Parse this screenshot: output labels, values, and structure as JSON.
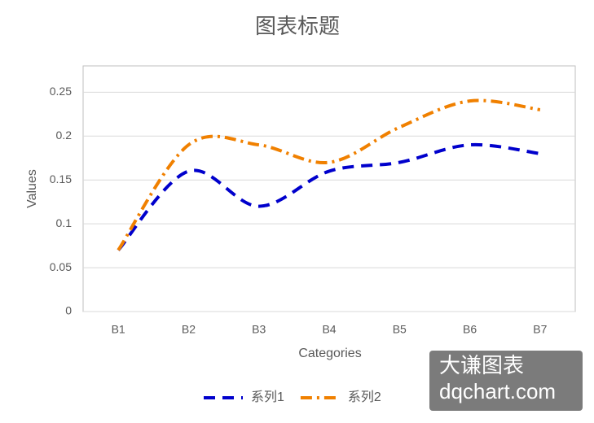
{
  "chart_data": {
    "type": "line",
    "title": "图表标题",
    "x_label": "Categories",
    "y_label": "Values",
    "categories": [
      "B1",
      "B2",
      "B3",
      "B4",
      "B5",
      "B6",
      "B7"
    ],
    "series": [
      {
        "name": "系列1",
        "color": "#0000cc",
        "dash": "dash",
        "values": [
          0.07,
          0.16,
          0.12,
          0.16,
          0.17,
          0.19,
          0.18
        ]
      },
      {
        "name": "系列2",
        "color": "#f08000",
        "dash": "dashdot",
        "values": [
          0.07,
          0.19,
          0.19,
          0.17,
          0.21,
          0.24,
          0.23
        ]
      }
    ],
    "ylim": [
      0,
      0.28
    ],
    "yticks": [
      0,
      0.05,
      0.1,
      0.15,
      0.2,
      0.25
    ],
    "grid": true,
    "smooth": true,
    "legend": "bottom",
    "watermark": [
      "大谦图表",
      "dqchart.com"
    ]
  }
}
